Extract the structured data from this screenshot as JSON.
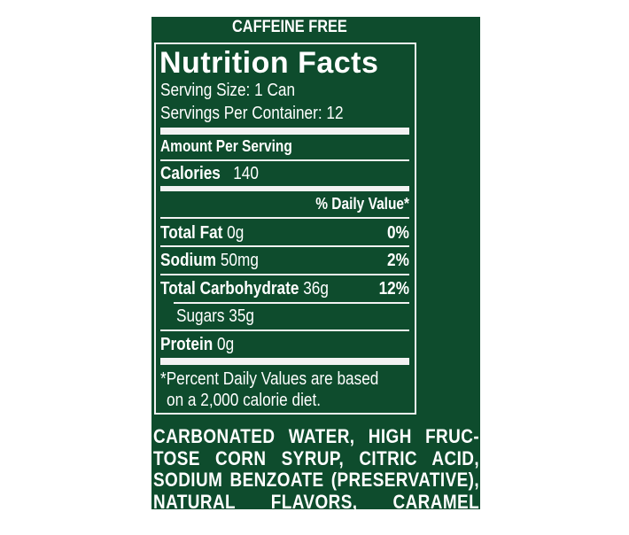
{
  "header": {
    "caffeine_free": "CAFFEINE FREE"
  },
  "label": {
    "title": "Nutrition Facts",
    "serving_size": "Serving Size: 1 Can",
    "servings_per_container": "Servings Per Container: 12",
    "amount_per_serving": "Amount Per Serving",
    "calories_label": "Calories",
    "calories_value": "140",
    "daily_value_header": "% Daily Value*",
    "nutrients": [
      {
        "name": "Total Fat",
        "amount": "0g",
        "dv": "0%"
      },
      {
        "name": "Sodium",
        "amount": "50mg",
        "dv": "2%"
      },
      {
        "name": "Total Carbohydrate",
        "amount": "36g",
        "dv": "12%"
      },
      {
        "name": "Sugars",
        "amount": "35g",
        "dv": ""
      },
      {
        "name": "Protein",
        "amount": "0g",
        "dv": ""
      }
    ],
    "footnote_line1": "*Percent Daily Values are based",
    "footnote_line2": "on a 2,000 calorie diet."
  },
  "ingredients": {
    "lines": [
      "CARBONATED WATER, HIGH FRUC-",
      "TOSE CORN SYRUP, CITRIC ACID,",
      "SODIUM BENZOATE (PRESERVATIVE),",
      "NATURAL FLAVORS, CARAMEL COLOR."
    ]
  },
  "colors": {
    "background": "#0e4c2d",
    "text": "#ffffff"
  }
}
